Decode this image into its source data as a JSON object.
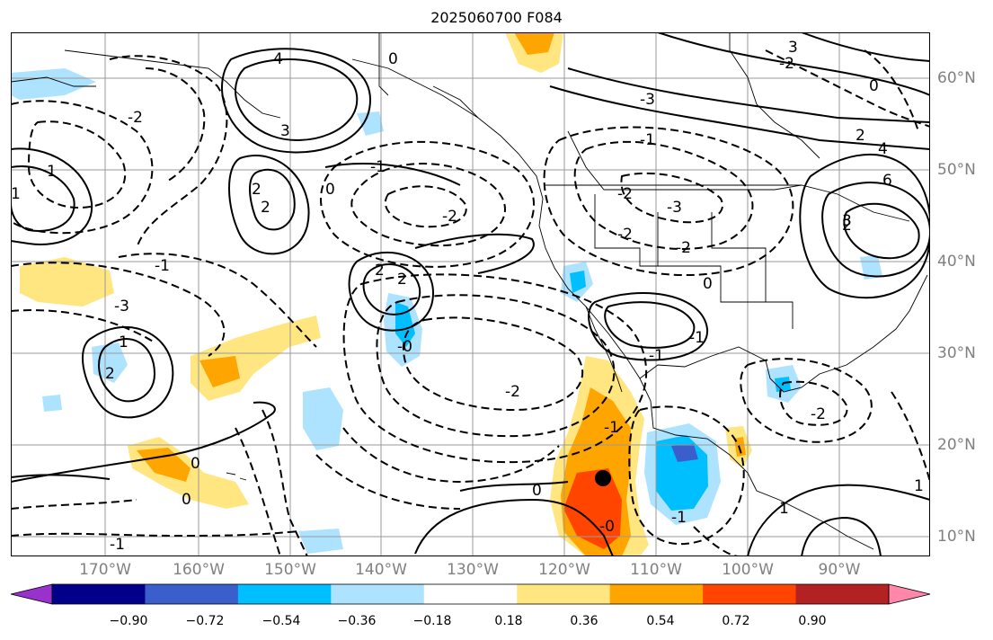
{
  "title": "2025060700 F084",
  "lon_labels": [
    "170°W",
    "160°W",
    "150°W",
    "140°W",
    "130°W",
    "120°W",
    "110°W",
    "100°W",
    "90°W"
  ],
  "lat_labels": [
    "60°N",
    "50°N",
    "40°N",
    "30°N",
    "20°N",
    "10°N"
  ],
  "contour_labels": [
    "4",
    "3",
    "2",
    "2",
    "1",
    "0",
    "-1",
    "-2",
    "-3",
    "2",
    "2",
    "2",
    "-1",
    "-2",
    "-3",
    "3",
    "4",
    "6",
    "-1",
    "-2",
    "-3",
    "1",
    "2",
    "-1",
    "-2",
    "0",
    "0",
    "1",
    "-1",
    "-2",
    "-2",
    "0",
    "-0",
    "-1",
    "1",
    "0",
    "-0",
    "-1",
    "-2",
    "1",
    "0",
    "-1",
    "0",
    "-2",
    "2",
    "3"
  ],
  "colorbar": {
    "ticks": [
      "−0.90",
      "−0.72",
      "−0.54",
      "−0.36",
      "−0.18",
      "0.18",
      "0.36",
      "0.54",
      "0.72",
      "0.90"
    ],
    "colors": [
      "#9932cc",
      "#00008b",
      "#3a5fcd",
      "#00bfff",
      "#aee3ff",
      "#ffffff",
      "#ffe680",
      "#ffa500",
      "#ff4500",
      "#b22222",
      "#ff88aa"
    ]
  },
  "marker": "black-dot"
}
